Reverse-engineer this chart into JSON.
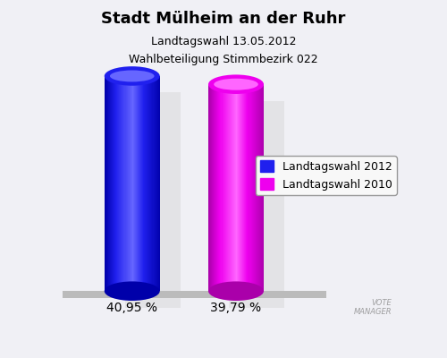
{
  "title": "Stadt Mülheim an der Ruhr",
  "subtitle1": "Landtagswahl 13.05.2012",
  "subtitle2": "Wahlbeteiligung Stimmbezirk 022",
  "values": [
    40.95,
    39.79
  ],
  "labels": [
    "40,95 %",
    "39,79 %"
  ],
  "bar_colors_main": [
    "#2020ee",
    "#ee00ee"
  ],
  "bar_colors_dark": [
    "#0000aa",
    "#aa00aa"
  ],
  "bar_colors_light": [
    "#6666ff",
    "#ff66ff"
  ],
  "bar_positions": [
    0.22,
    0.52
  ],
  "bar_width": 0.16,
  "legend_labels": [
    "Landtagswahl 2012",
    "Landtagswahl 2010"
  ],
  "legend_colors": [
    "#2020ee",
    "#ee00ee"
  ],
  "background_color": "#f0f0f5",
  "title_fontsize": 13,
  "subtitle_fontsize": 9,
  "label_fontsize": 10,
  "legend_fontsize": 9,
  "shadow_color": "#cccccc",
  "platform_color": "#bbbbbb"
}
